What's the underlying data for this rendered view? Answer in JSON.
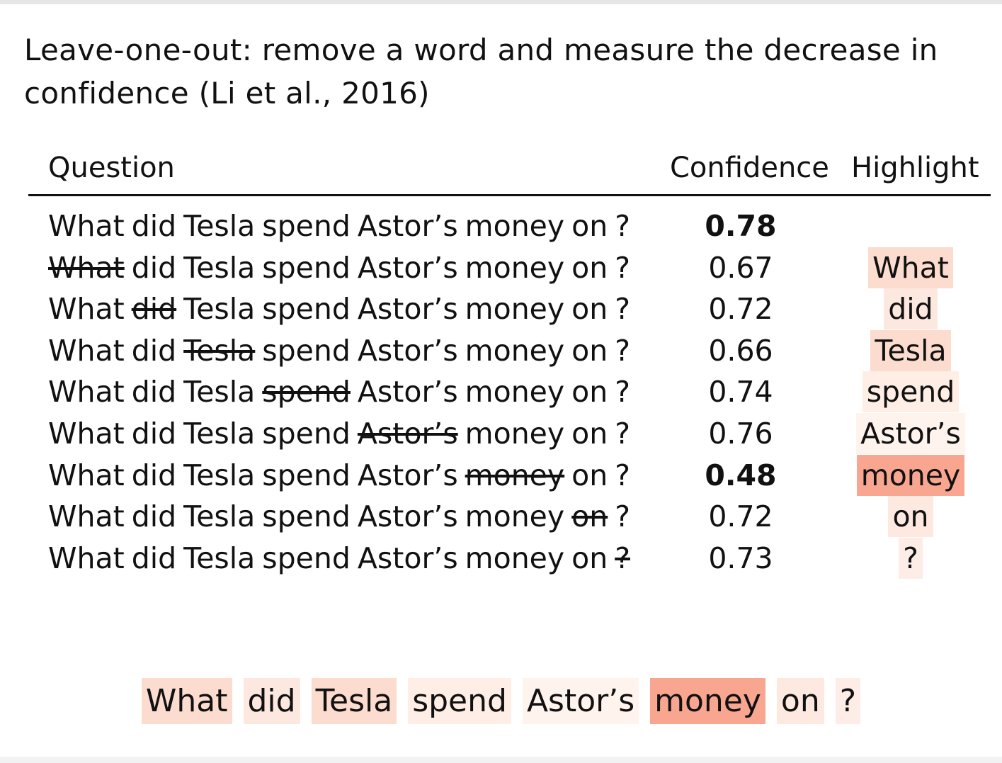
{
  "slide": {
    "title": "Leave-one-out: remove a word and measure the decrease in confidence (Li et al., 2016)"
  },
  "table": {
    "headers": {
      "question": "Question",
      "confidence": "Confidence",
      "highlight": "Highlight"
    },
    "words": [
      "What",
      "did",
      "Tesla",
      "spend",
      "Astor’s",
      "money",
      "on",
      "?"
    ],
    "rows": [
      {
        "removed": -1,
        "confidence": "0.78",
        "bold": true,
        "highlight": "",
        "color": "#ffffff"
      },
      {
        "removed": 0,
        "confidence": "0.67",
        "bold": false,
        "highlight": "What",
        "color": "#fbdccf"
      },
      {
        "removed": 1,
        "confidence": "0.72",
        "bold": false,
        "highlight": "did",
        "color": "#fde8df"
      },
      {
        "removed": 2,
        "confidence": "0.66",
        "bold": false,
        "highlight": "Tesla",
        "color": "#fbdccf"
      },
      {
        "removed": 3,
        "confidence": "0.74",
        "bold": false,
        "highlight": "spend",
        "color": "#feeee6"
      },
      {
        "removed": 4,
        "confidence": "0.76",
        "bold": false,
        "highlight": "Astor’s",
        "color": "#fff3ed"
      },
      {
        "removed": 5,
        "confidence": "0.48",
        "bold": true,
        "highlight": "money",
        "color": "#f9a690"
      },
      {
        "removed": 6,
        "confidence": "0.72",
        "bold": false,
        "highlight": "on",
        "color": "#fde9e0"
      },
      {
        "removed": 7,
        "confidence": "0.73",
        "bold": false,
        "highlight": "?",
        "color": "#feede6"
      }
    ]
  },
  "summary": {
    "tokens": [
      {
        "word": "What",
        "color": "#fbdccf"
      },
      {
        "word": "did",
        "color": "#fde8df"
      },
      {
        "word": "Tesla",
        "color": "#fbdccf"
      },
      {
        "word": "spend",
        "color": "#feeee6"
      },
      {
        "word": "Astor’s",
        "color": "#fff3ed"
      },
      {
        "word": "money",
        "color": "#f9a690"
      },
      {
        "word": "on",
        "color": "#fde9e0"
      },
      {
        "word": "?",
        "color": "#feede6"
      }
    ]
  }
}
